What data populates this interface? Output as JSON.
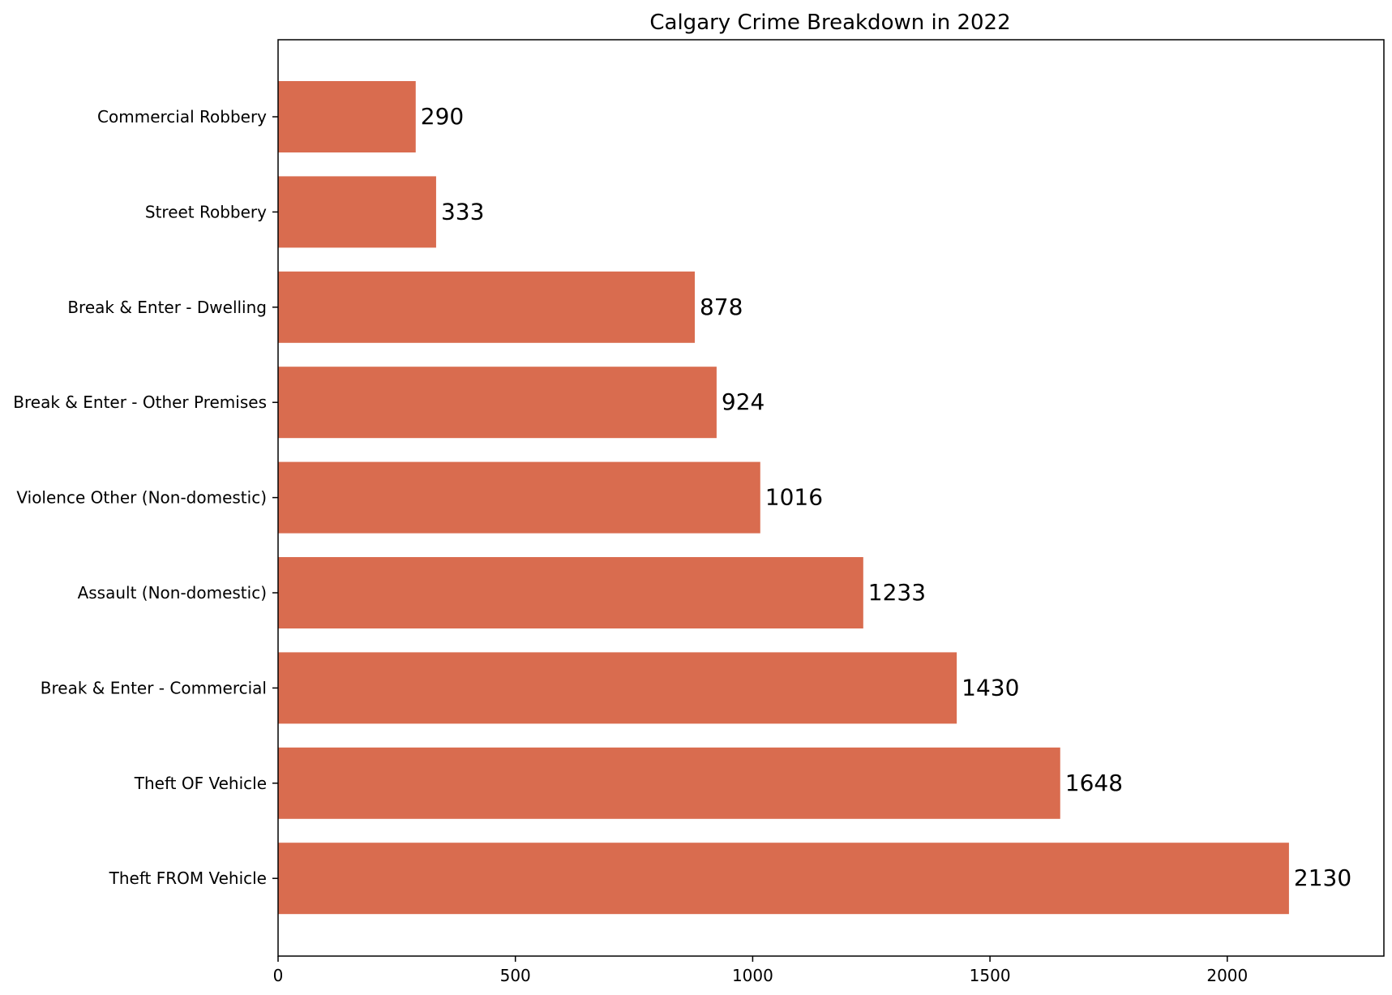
{
  "chart_data": {
    "type": "bar",
    "orientation": "horizontal",
    "title": "Calgary Crime Breakdown in 2022",
    "xlabel": "",
    "ylabel": "",
    "categories": [
      "Commercial Robbery",
      "Street Robbery",
      "Break & Enter - Dwelling",
      "Break & Enter - Other Premises",
      "Violence Other (Non-domestic)",
      "Assault (Non-domestic)",
      "Break & Enter - Commercial",
      "Theft OF Vehicle",
      "Theft FROM Vehicle"
    ],
    "values": [
      290,
      333,
      878,
      924,
      1016,
      1233,
      1430,
      1648,
      2130
    ],
    "data_labels": [
      "290",
      "333",
      "878",
      "924",
      "1016",
      "1233",
      "1430",
      "1648",
      "2130"
    ],
    "xlim": [
      0,
      2330
    ],
    "xticks": [
      0,
      500,
      1000,
      1500,
      2000
    ],
    "xtick_labels": [
      "0",
      "500",
      "1000",
      "1500",
      "2000"
    ],
    "grid": false,
    "bar_color": "#d96c4f"
  }
}
